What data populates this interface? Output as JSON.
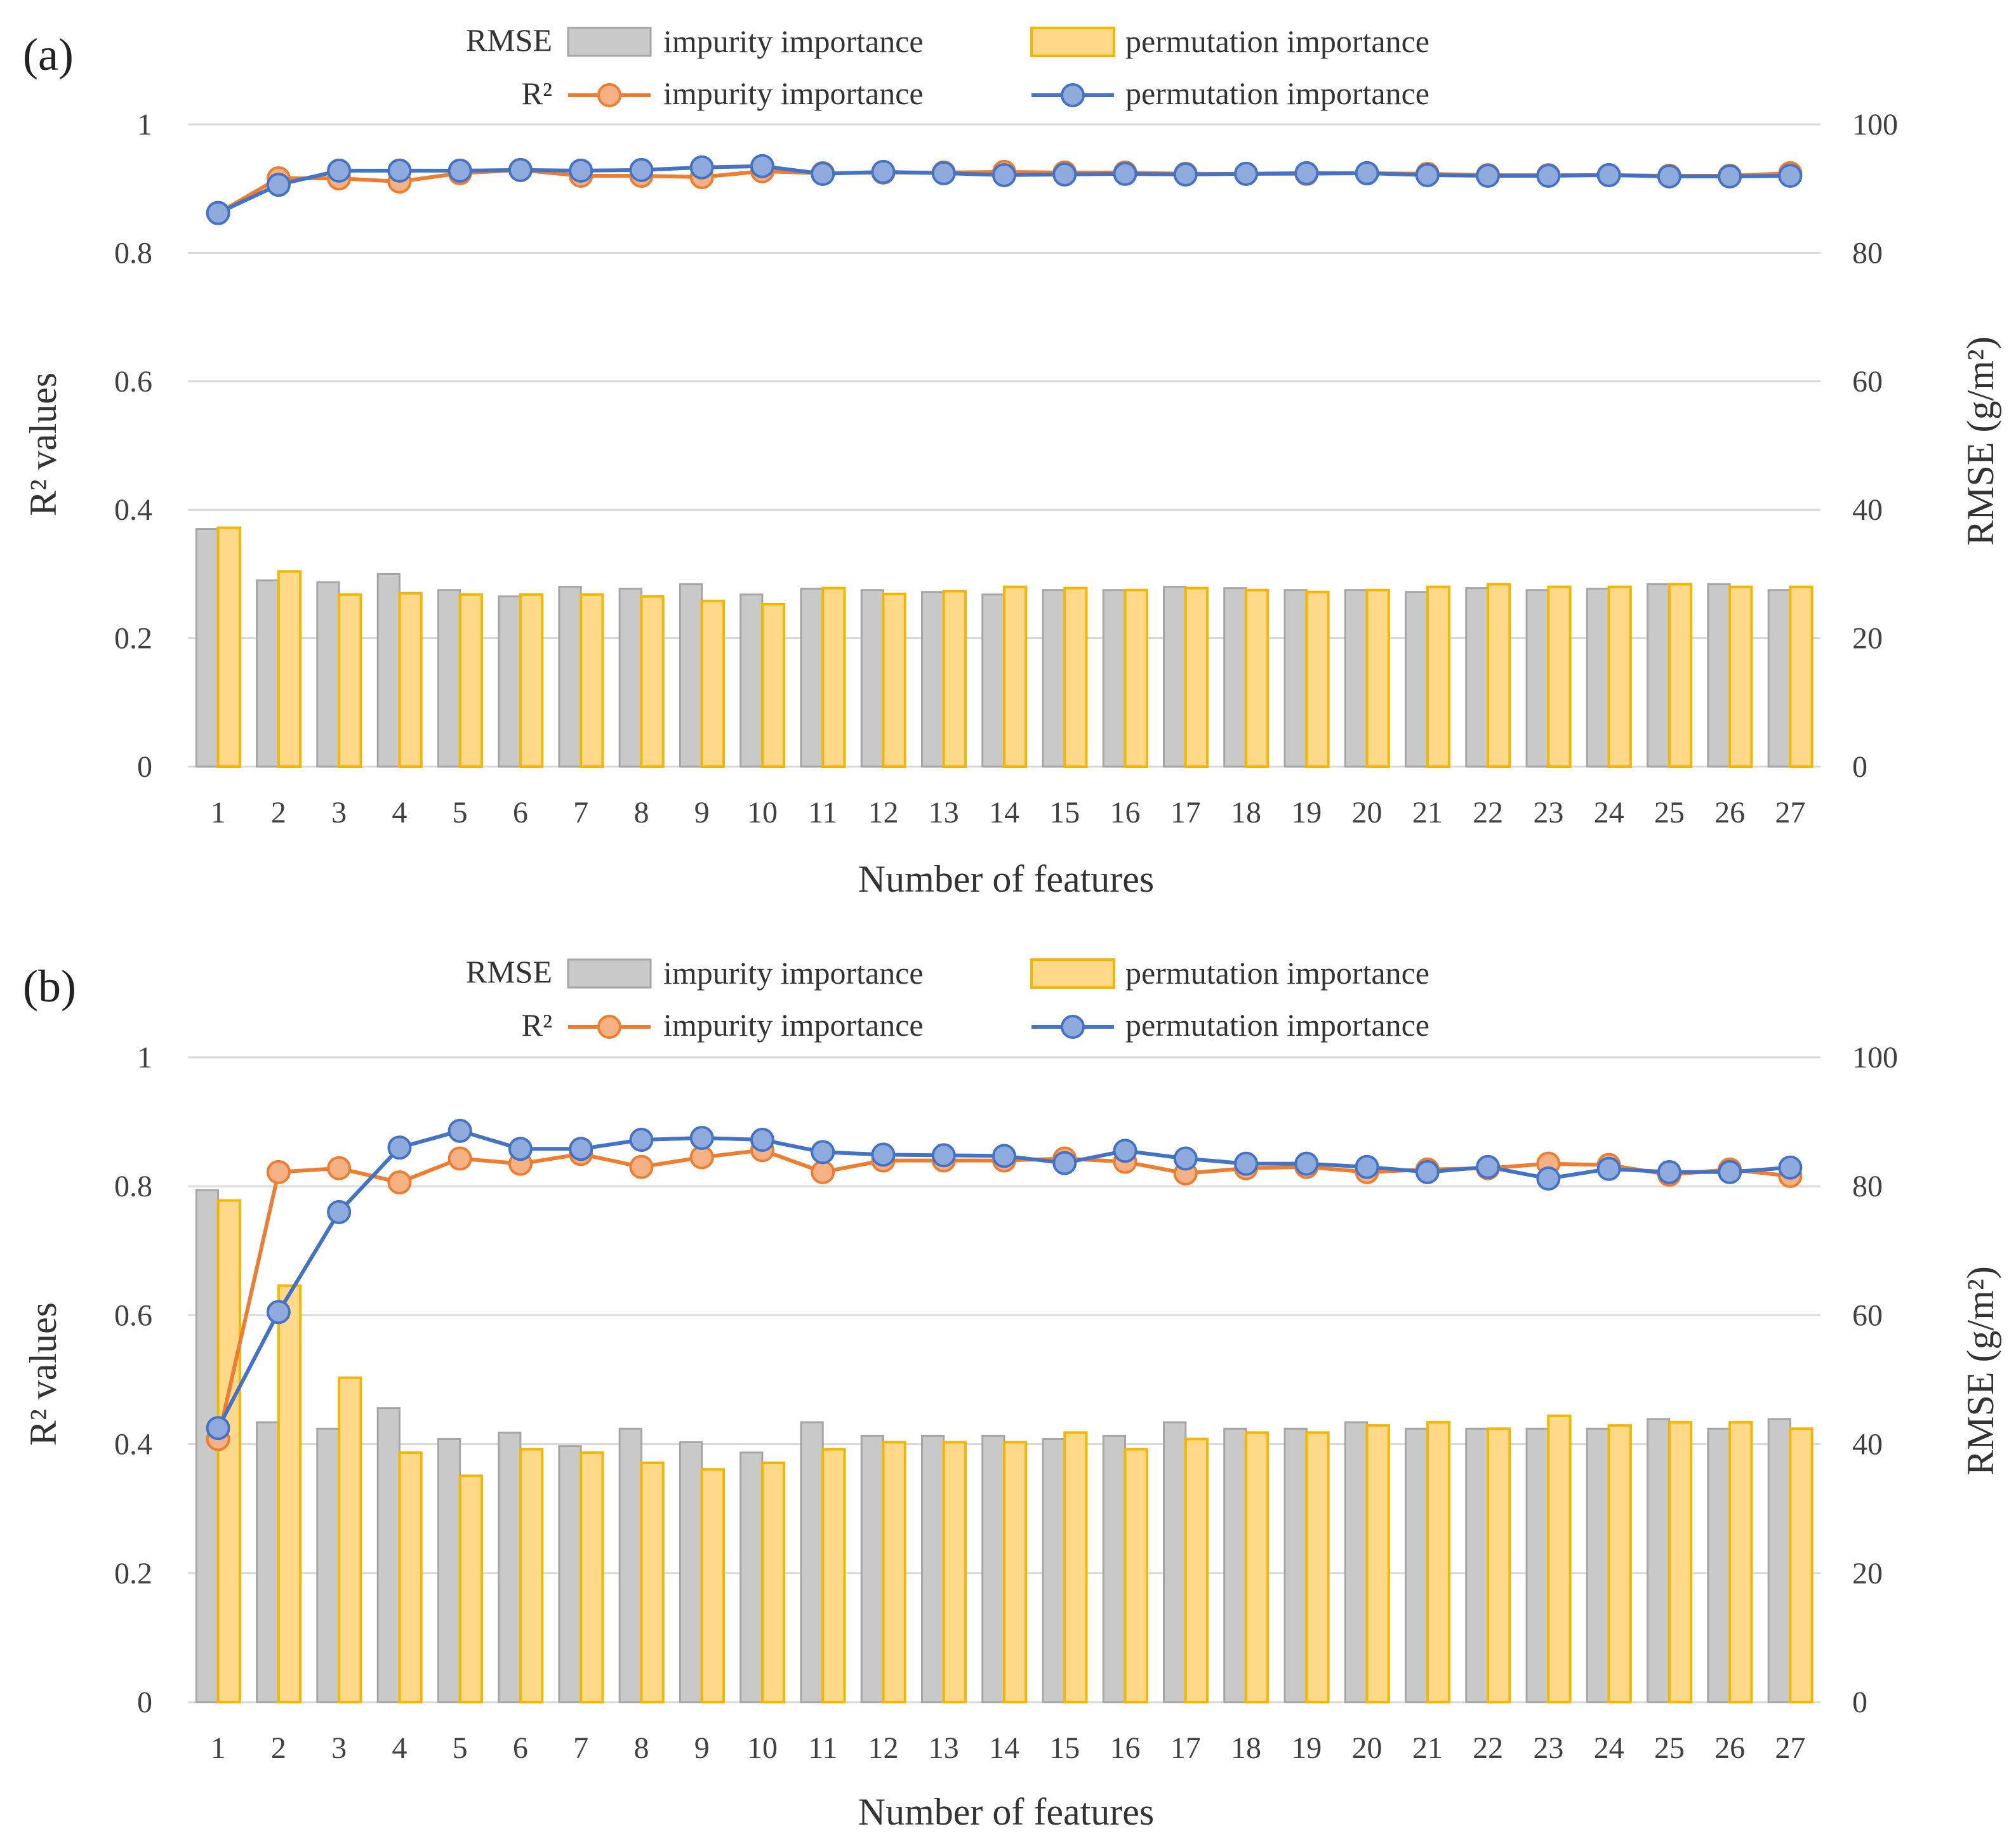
{
  "colors": {
    "impurity_bar_fill": "#c9c9c9",
    "impurity_bar_stroke": "#a6a6a6",
    "permutation_bar_fill": "#ffd98a",
    "permutation_bar_stroke": "#f2b705",
    "impurity_line": "#ed7d31",
    "impurity_marker_fill": "#f4b183",
    "permutation_line": "#4472c4",
    "permutation_marker_fill": "#8faadc",
    "gridline": "#d9d9d9"
  },
  "chart_data": [
    {
      "panel_label": "(a)",
      "type": "bar",
      "xlabel": "Number of features",
      "ylabel_left": "R² values",
      "ylabel_right": "RMSE (g/m²)",
      "ylim_left": [
        0,
        1
      ],
      "ylim_right": [
        0,
        100
      ],
      "yticks_left": [
        "0",
        "0.2",
        "0.4",
        "0.6",
        "0.8",
        "1"
      ],
      "yticks_right": [
        "0",
        "20",
        "40",
        "60",
        "80",
        "100"
      ],
      "grid": true,
      "legend": {
        "rmse_label": "RMSE",
        "r2_label": "R²",
        "impurity": "impurity importance",
        "permutation": "permutation importance"
      },
      "categories": [
        "1",
        "2",
        "3",
        "4",
        "5",
        "6",
        "7",
        "8",
        "9",
        "10",
        "11",
        "12",
        "13",
        "14",
        "15",
        "16",
        "17",
        "18",
        "19",
        "20",
        "21",
        "22",
        "23",
        "24",
        "25",
        "26",
        "27"
      ],
      "rmse_series": [
        {
          "name": "impurity importance",
          "axis": "right",
          "values": [
            37,
            29,
            28.7,
            30,
            27.5,
            26.5,
            28,
            27.7,
            28.4,
            26.8,
            27.7,
            27.5,
            27.2,
            26.8,
            27.5,
            27.5,
            28,
            27.8,
            27.5,
            27.5,
            27.2,
            27.8,
            27.5,
            27.7,
            28.4,
            28.4,
            27.5
          ]
        },
        {
          "name": "permutation importance",
          "axis": "right",
          "values": [
            37.2,
            30.4,
            26.8,
            27,
            26.8,
            26.8,
            26.8,
            26.5,
            25.8,
            25.3,
            27.8,
            26.9,
            27.3,
            28,
            27.8,
            27.5,
            27.8,
            27.5,
            27.2,
            27.5,
            28,
            28.4,
            28,
            28,
            28.4,
            28,
            28
          ]
        }
      ],
      "r2_series": [
        {
          "name": "impurity importance",
          "axis": "left",
          "values": [
            0.862,
            0.916,
            0.916,
            0.911,
            0.924,
            0.929,
            0.92,
            0.92,
            0.918,
            0.927,
            0.924,
            0.925,
            0.925,
            0.926,
            0.925,
            0.925,
            0.923,
            0.923,
            0.923,
            0.924,
            0.923,
            0.921,
            0.921,
            0.921,
            0.92,
            0.92,
            0.924
          ]
        },
        {
          "name": "permutation importance",
          "axis": "left",
          "values": [
            0.862,
            0.906,
            0.928,
            0.928,
            0.928,
            0.929,
            0.928,
            0.929,
            0.933,
            0.935,
            0.923,
            0.926,
            0.924,
            0.921,
            0.922,
            0.923,
            0.922,
            0.923,
            0.924,
            0.924,
            0.921,
            0.92,
            0.92,
            0.921,
            0.919,
            0.919,
            0.92
          ]
        }
      ]
    },
    {
      "panel_label": "(b)",
      "type": "bar",
      "xlabel": "Number of features",
      "ylabel_left": "R² values",
      "ylabel_right": "RMSE (g/m²)",
      "ylim_left": [
        0,
        1
      ],
      "ylim_right": [
        0,
        100
      ],
      "yticks_left": [
        "0",
        "0.2",
        "0.4",
        "0.6",
        "0.8",
        "1"
      ],
      "yticks_right": [
        "0",
        "20",
        "40",
        "60",
        "80",
        "100"
      ],
      "grid": true,
      "legend": {
        "rmse_label": "RMSE",
        "r2_label": "R²",
        "impurity": "impurity importance",
        "permutation": "permutation importance"
      },
      "categories": [
        "1",
        "2",
        "3",
        "4",
        "5",
        "6",
        "7",
        "8",
        "9",
        "10",
        "11",
        "12",
        "13",
        "14",
        "15",
        "16",
        "17",
        "18",
        "19",
        "20",
        "21",
        "22",
        "23",
        "24",
        "25",
        "26",
        "27"
      ],
      "rmse_series": [
        {
          "name": "impurity importance",
          "axis": "right",
          "values": [
            79.4,
            43.4,
            42.4,
            45.6,
            40.8,
            41.8,
            39.7,
            42.4,
            40.3,
            38.7,
            43.4,
            41.3,
            41.3,
            41.3,
            40.8,
            41.3,
            43.4,
            42.4,
            42.4,
            43.4,
            42.4,
            42.4,
            42.4,
            42.4,
            43.9,
            42.4,
            43.9
          ]
        },
        {
          "name": "permutation importance",
          "axis": "right",
          "values": [
            77.8,
            64.6,
            50.3,
            38.7,
            35.1,
            39.2,
            38.7,
            37.1,
            36.1,
            37.1,
            39.2,
            40.3,
            40.3,
            40.3,
            41.8,
            39.2,
            40.8,
            41.8,
            41.8,
            42.9,
            43.4,
            42.4,
            44.4,
            42.9,
            43.4,
            43.4,
            42.4
          ]
        }
      ],
      "r2_series": [
        {
          "name": "impurity importance",
          "axis": "left",
          "values": [
            0.408,
            0.822,
            0.828,
            0.806,
            0.843,
            0.835,
            0.85,
            0.83,
            0.845,
            0.856,
            0.822,
            0.84,
            0.84,
            0.84,
            0.843,
            0.838,
            0.82,
            0.828,
            0.83,
            0.822,
            0.826,
            0.828,
            0.835,
            0.833,
            0.818,
            0.826,
            0.816
          ]
        },
        {
          "name": "permutation importance",
          "axis": "left",
          "values": [
            0.425,
            0.605,
            0.76,
            0.86,
            0.886,
            0.858,
            0.858,
            0.872,
            0.875,
            0.872,
            0.853,
            0.849,
            0.848,
            0.847,
            0.836,
            0.855,
            0.843,
            0.835,
            0.835,
            0.83,
            0.822,
            0.83,
            0.812,
            0.827,
            0.822,
            0.822,
            0.829
          ]
        }
      ]
    }
  ]
}
